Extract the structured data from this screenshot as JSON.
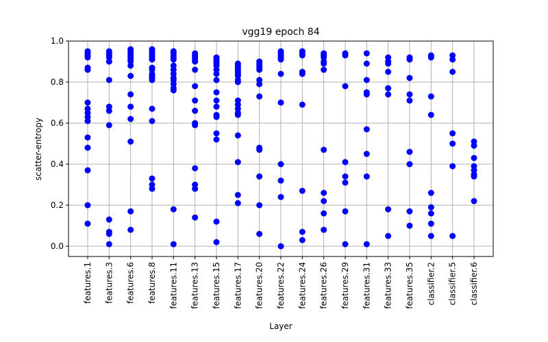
{
  "chart_data": {
    "type": "scatter",
    "title": "vgg19 epoch 84",
    "xlabel": "Layer",
    "ylabel": "scatter-entropy",
    "ylim": [
      -0.05,
      1.0
    ],
    "yticks": [
      "0.0",
      "0.2",
      "0.4",
      "0.6",
      "0.8",
      "1.0"
    ],
    "grid": true,
    "marker_color": "#0000ff",
    "categories": [
      "features.1",
      "features.3",
      "features.6",
      "features.8",
      "features.11",
      "features.13",
      "features.15",
      "features.17",
      "features.20",
      "features.22",
      "features.24",
      "features.26",
      "features.29",
      "features.31",
      "features.33",
      "features.35",
      "classifier.2",
      "classifier.5",
      "classifier.6"
    ],
    "series": [
      {
        "category": "features.1",
        "values": [
          0.95,
          0.94,
          0.93,
          0.92,
          0.87,
          0.86,
          0.7,
          0.67,
          0.65,
          0.63,
          0.61,
          0.53,
          0.48,
          0.37,
          0.2,
          0.11
        ]
      },
      {
        "category": "features.3",
        "values": [
          0.95,
          0.94,
          0.93,
          0.92,
          0.9,
          0.81,
          0.68,
          0.66,
          0.59,
          0.13,
          0.07,
          0.06,
          0.01
        ]
      },
      {
        "category": "features.6",
        "values": [
          0.96,
          0.95,
          0.94,
          0.93,
          0.92,
          0.91,
          0.9,
          0.88,
          0.83,
          0.74,
          0.68,
          0.62,
          0.51,
          0.17,
          0.08
        ]
      },
      {
        "category": "features.8",
        "values": [
          0.96,
          0.95,
          0.94,
          0.93,
          0.92,
          0.91,
          0.87,
          0.86,
          0.84,
          0.83,
          0.82,
          0.81,
          0.67,
          0.61,
          0.33,
          0.3,
          0.28
        ]
      },
      {
        "category": "features.11",
        "values": [
          0.95,
          0.94,
          0.93,
          0.92,
          0.91,
          0.88,
          0.86,
          0.84,
          0.82,
          0.81,
          0.79,
          0.77,
          0.76,
          0.18,
          0.01
        ]
      },
      {
        "category": "features.13",
        "values": [
          0.94,
          0.93,
          0.92,
          0.91,
          0.9,
          0.86,
          0.78,
          0.71,
          0.66,
          0.6,
          0.59,
          0.38,
          0.3,
          0.28,
          0.14
        ]
      },
      {
        "category": "features.15",
        "values": [
          0.92,
          0.91,
          0.9,
          0.89,
          0.88,
          0.86,
          0.84,
          0.81,
          0.75,
          0.71,
          0.68,
          0.64,
          0.63,
          0.55,
          0.52,
          0.12,
          0.02
        ]
      },
      {
        "category": "features.17",
        "values": [
          0.89,
          0.88,
          0.87,
          0.86,
          0.85,
          0.84,
          0.83,
          0.81,
          0.8,
          0.71,
          0.69,
          0.67,
          0.65,
          0.64,
          0.54,
          0.41,
          0.25,
          0.21
        ]
      },
      {
        "category": "features.20",
        "values": [
          0.9,
          0.89,
          0.88,
          0.87,
          0.86,
          0.81,
          0.79,
          0.73,
          0.48,
          0.47,
          0.34,
          0.2,
          0.06
        ]
      },
      {
        "category": "features.22",
        "values": [
          0.95,
          0.94,
          0.93,
          0.92,
          0.91,
          0.84,
          0.7,
          0.4,
          0.32,
          0.24,
          0.0
        ]
      },
      {
        "category": "features.24",
        "values": [
          0.95,
          0.94,
          0.93,
          0.85,
          0.84,
          0.69,
          0.27,
          0.07,
          0.03
        ]
      },
      {
        "category": "features.26",
        "values": [
          0.94,
          0.93,
          0.92,
          0.9,
          0.89,
          0.86,
          0.47,
          0.26,
          0.22,
          0.16,
          0.08
        ]
      },
      {
        "category": "features.29",
        "values": [
          0.94,
          0.93,
          0.78,
          0.41,
          0.34,
          0.31,
          0.17,
          0.01
        ]
      },
      {
        "category": "features.31",
        "values": [
          0.94,
          0.89,
          0.81,
          0.75,
          0.74,
          0.57,
          0.45,
          0.34,
          0.01
        ]
      },
      {
        "category": "features.33",
        "values": [
          0.92,
          0.9,
          0.89,
          0.85,
          0.77,
          0.74,
          0.18,
          0.05
        ]
      },
      {
        "category": "features.35",
        "values": [
          0.92,
          0.91,
          0.82,
          0.74,
          0.71,
          0.46,
          0.4,
          0.17,
          0.1
        ]
      },
      {
        "category": "classifier.2",
        "values": [
          0.93,
          0.92,
          0.73,
          0.64,
          0.26,
          0.19,
          0.16,
          0.11,
          0.05
        ]
      },
      {
        "category": "classifier.5",
        "values": [
          0.93,
          0.91,
          0.85,
          0.55,
          0.5,
          0.39,
          0.05
        ]
      },
      {
        "category": "classifier.6",
        "values": [
          0.51,
          0.49,
          0.43,
          0.39,
          0.37,
          0.35,
          0.34,
          0.22
        ]
      }
    ]
  }
}
